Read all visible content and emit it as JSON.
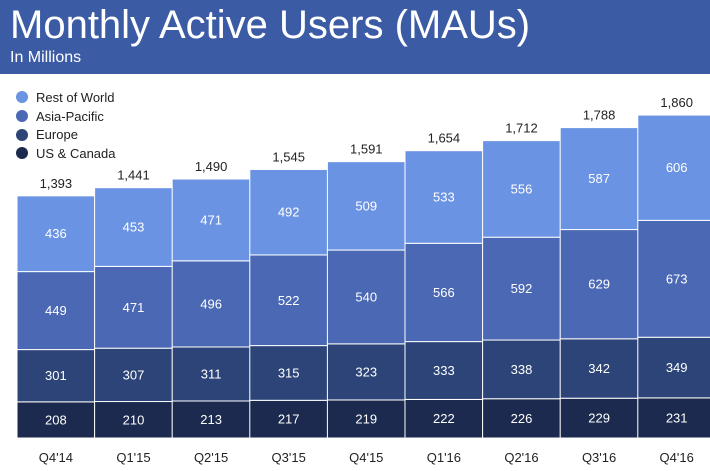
{
  "header": {
    "title": "Monthly Active Users (MAUs)",
    "subtitle": "In Millions",
    "background": "#3b5ba5"
  },
  "chart_data": {
    "type": "stacked-bar",
    "title": "Monthly Active Users (MAUs)",
    "subtitle": "In Millions",
    "xlabel": "",
    "ylabel": "",
    "legend_position": "top-left",
    "categories": [
      "Q4'14",
      "Q1'15",
      "Q2'15",
      "Q3'15",
      "Q4'15",
      "Q1'16",
      "Q2'16",
      "Q3'16",
      "Q4'16"
    ],
    "totals": [
      "1,393",
      "1,441",
      "1,490",
      "1,545",
      "1,591",
      "1,654",
      "1,712",
      "1,788",
      "1,860"
    ],
    "series": [
      {
        "name": "US & Canada",
        "color": "#1b2a4e",
        "values": [
          208,
          210,
          213,
          217,
          219,
          222,
          226,
          229,
          231
        ]
      },
      {
        "name": "Europe",
        "color": "#2c4477",
        "values": [
          301,
          307,
          311,
          315,
          323,
          333,
          338,
          342,
          349
        ]
      },
      {
        "name": "Asia-Pacific",
        "color": "#4a68b3",
        "values": [
          449,
          471,
          496,
          522,
          540,
          566,
          592,
          629,
          673
        ]
      },
      {
        "name": "Rest of World",
        "color": "#6b93e3",
        "values": [
          436,
          453,
          471,
          492,
          509,
          533,
          556,
          587,
          606
        ]
      }
    ],
    "legend_order": [
      "Rest of World",
      "Asia-Pacific",
      "Europe",
      "US & Canada"
    ]
  }
}
